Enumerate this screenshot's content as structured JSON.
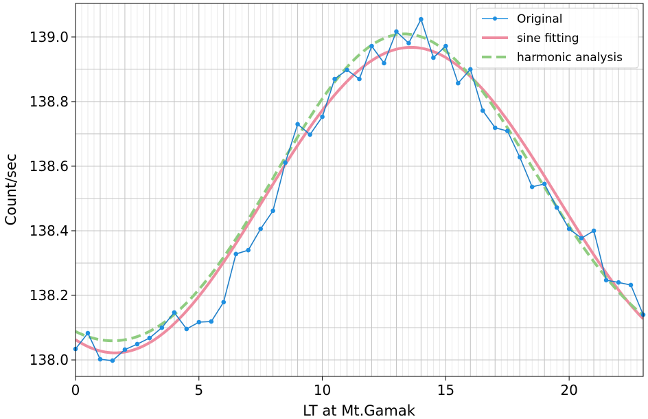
{
  "chart_data": {
    "type": "line",
    "title": "",
    "xlabel": "LT at Mt.Gamak",
    "ylabel": "Count/sec",
    "xlim": [
      0,
      23
    ],
    "ylim": [
      137.949,
      139.104
    ],
    "xticks": [
      0,
      5,
      10,
      15,
      20
    ],
    "xtick_labels": [
      "0",
      "5",
      "10",
      "15",
      "20"
    ],
    "yticks": [
      138.0,
      138.2,
      138.4,
      138.6,
      138.8,
      139.0
    ],
    "ytick_labels": [
      "138.0",
      "138.2",
      "138.4",
      "138.6",
      "138.8",
      "139.0"
    ],
    "grid": true,
    "legend_position": "top-right",
    "series": [
      {
        "name": "Original",
        "style": "line-with-markers",
        "color": "#1f8fe0",
        "x": [
          0,
          0.5,
          1,
          1.5,
          2,
          2.5,
          3,
          3.5,
          4,
          4.5,
          5,
          5.5,
          6,
          6.5,
          7,
          7.5,
          8,
          8.5,
          9,
          9.5,
          10,
          10.5,
          11,
          11.5,
          12,
          12.5,
          13,
          13.5,
          14,
          14.5,
          15,
          15.5,
          16,
          16.5,
          17,
          17.5,
          18,
          18.5,
          19,
          19.5,
          20,
          20.5,
          21,
          21.5,
          22,
          22.5,
          23
        ],
        "values": [
          138.034,
          138.083,
          138.002,
          137.998,
          138.032,
          138.049,
          138.068,
          138.1,
          138.147,
          138.096,
          138.117,
          138.119,
          138.179,
          138.328,
          138.34,
          138.406,
          138.462,
          138.611,
          138.73,
          138.698,
          138.753,
          138.87,
          138.898,
          138.87,
          138.972,
          138.919,
          139.017,
          138.981,
          139.055,
          138.936,
          138.972,
          138.857,
          138.9,
          138.772,
          138.719,
          138.709,
          138.628,
          138.536,
          138.545,
          138.472,
          138.406,
          138.377,
          138.4,
          138.247,
          138.24,
          138.232,
          138.14
        ]
      },
      {
        "name": "sine fitting",
        "style": "solid",
        "color": "#ee8ca0",
        "model": {
          "mean": 138.495,
          "harmonics": [
            {
              "period": 24,
              "amplitude": 0.473,
              "peak_hour": 13.6
            }
          ]
        }
      },
      {
        "name": "harmonic analysis",
        "style": "dashed",
        "color": "#8fcc80",
        "model": {
          "mean": 138.51,
          "harmonics": [
            {
              "period": 24,
              "amplitude": 0.475,
              "peak_hour": 13.4
            },
            {
              "period": 12,
              "amplitude": 0.025,
              "peak_hour": 1.0
            }
          ]
        }
      }
    ]
  }
}
